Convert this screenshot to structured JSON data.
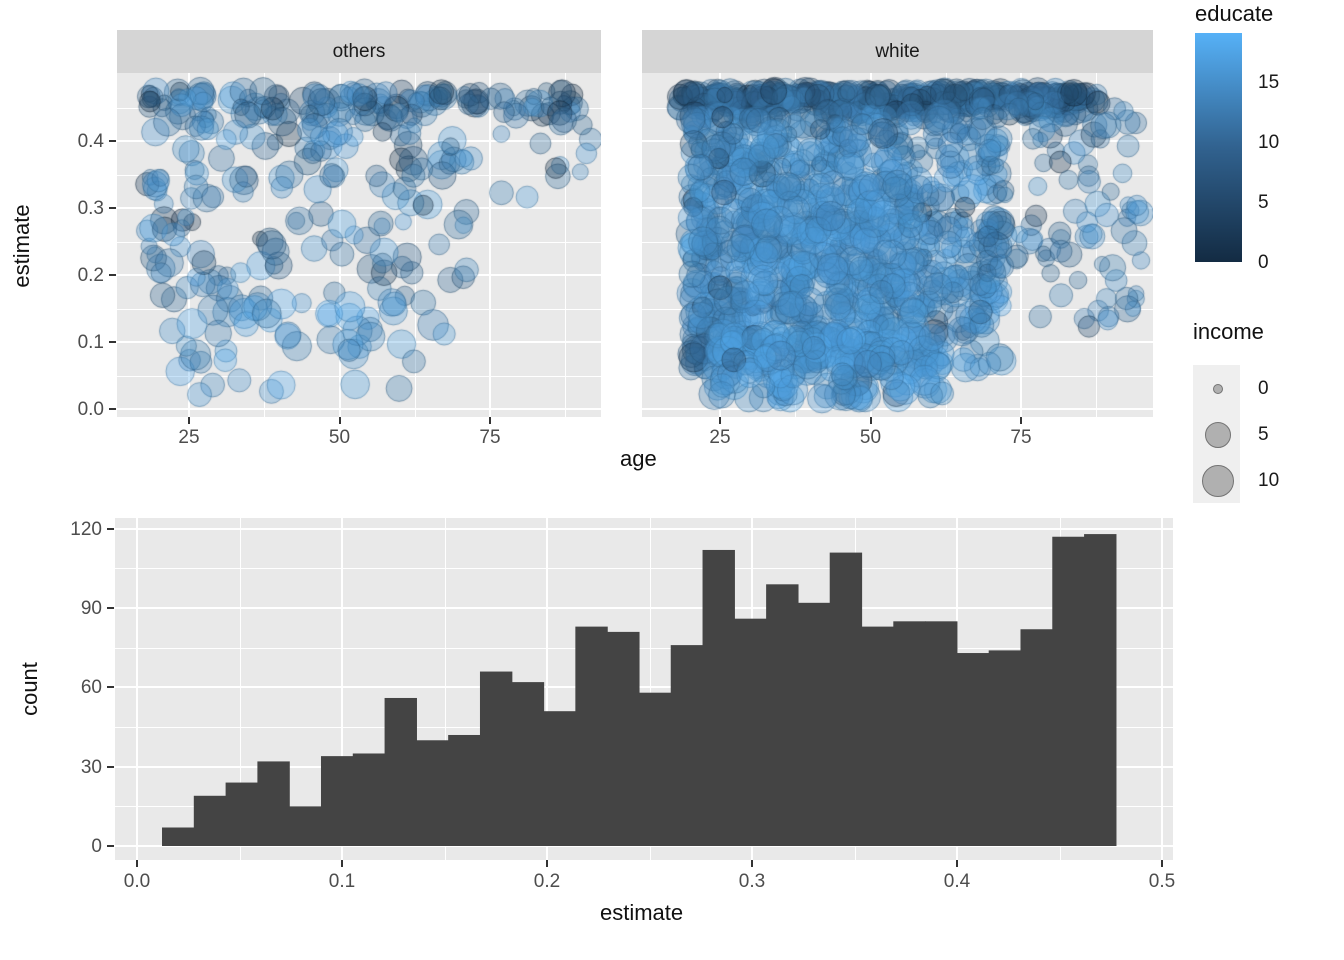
{
  "colors": {
    "panel_bg": "#e9e9e9",
    "strip_bg": "#d5d5d5",
    "grid": "#ffffff",
    "bar_fill": "#444444",
    "tick_text": "#4d4d4d",
    "title_text": "#111111",
    "educate_low": "#132b43",
    "educate_high": "#56b1f7"
  },
  "scatter": {
    "x_title": "age",
    "y_title": "estimate",
    "facets": [
      {
        "label": "others"
      },
      {
        "label": "white"
      }
    ],
    "x_tick_labels": [
      "25",
      "50",
      "75"
    ],
    "x_tick_values": [
      25,
      50,
      75
    ],
    "x_minor_values": [
      37.5,
      62.5,
      87.5
    ],
    "y_tick_labels": [
      "0.0",
      "0.1",
      "0.2",
      "0.3",
      "0.4"
    ],
    "y_tick_values": [
      0.0,
      0.1,
      0.2,
      0.3,
      0.4
    ],
    "y_minor_values": [
      0.05,
      0.15,
      0.25,
      0.35,
      0.45
    ]
  },
  "legend_educate": {
    "title": "educate",
    "max_value": 19.1,
    "low": "#132b43",
    "high": "#56b1f7",
    "ticks": [
      {
        "value": 15,
        "label": "15"
      },
      {
        "value": 10,
        "label": "10"
      },
      {
        "value": 5,
        "label": "5"
      },
      {
        "value": 0,
        "label": "0"
      }
    ]
  },
  "legend_income": {
    "title": "income",
    "keys": [
      {
        "label": "0",
        "radius": 4
      },
      {
        "label": "5",
        "radius": 12
      },
      {
        "label": "10",
        "radius": 15
      }
    ]
  },
  "histogram": {
    "x_title": "estimate",
    "y_title": "count",
    "x_tick_labels": [
      "0.0",
      "0.1",
      "0.2",
      "0.3",
      "0.4",
      "0.5"
    ],
    "x_tick_values": [
      0.0,
      0.1,
      0.2,
      0.3,
      0.4,
      0.5
    ],
    "x_minor_values": [
      0.05,
      0.15,
      0.25,
      0.35,
      0.45
    ],
    "y_tick_labels": [
      "0",
      "30",
      "60",
      "90",
      "120"
    ],
    "y_tick_values": [
      0,
      30,
      60,
      90,
      120
    ],
    "y_minor_values": [
      15,
      45,
      75,
      105
    ]
  },
  "chart_data": [
    {
      "type": "scatter",
      "title": "",
      "x": "age",
      "y": "estimate",
      "color": "educate",
      "size": "income",
      "facet_variable_values": [
        "others",
        "white"
      ],
      "xlim": [
        13,
        96
      ],
      "ylim": [
        -0.012,
        0.5
      ],
      "x_ticks": [
        25,
        50,
        75
      ],
      "y_ticks": [
        0.0,
        0.1,
        0.2,
        0.3,
        0.4
      ],
      "grid": true,
      "color_scale": {
        "low": "#132b43",
        "high": "#56b1f7",
        "ticks": [
          0,
          5,
          10,
          15
        ],
        "max": 19.1
      },
      "size_scale": {
        "ticks": [
          0,
          5,
          10
        ],
        "radius_px": [
          4,
          12,
          15
        ]
      },
      "point_alpha": 0.32,
      "point_clusters": {
        "others": [
          {
            "n": 140,
            "age": [
              18,
              90
            ],
            "age_bias": 1.0,
            "est": [
              0.425,
              0.475
            ],
            "est_bias": 0.55,
            "educate": [
              6,
              17
            ],
            "dark_frac": 0.18,
            "income": [
              1,
              8
            ]
          },
          {
            "n": 150,
            "age": [
              18,
              72
            ],
            "age_bias": 1.2,
            "est": [
              0.155,
              0.43
            ],
            "est_bias": 0.9,
            "educate": [
              7,
              17
            ],
            "dark_frac": 0.08,
            "income": [
              1,
              9
            ]
          },
          {
            "n": 50,
            "age": [
              22,
              68
            ],
            "age_bias": 1.1,
            "est": [
              0.02,
              0.16
            ],
            "est_bias": 1.0,
            "educate": [
              11,
              19
            ],
            "dark_frac": 0.03,
            "income": [
              3,
              11
            ]
          },
          {
            "n": 15,
            "age": [
              70,
              92
            ],
            "age_bias": 1.0,
            "est": [
              0.3,
              0.46
            ],
            "est_bias": 0.8,
            "educate": [
              8,
              16
            ],
            "dark_frac": 0.05,
            "income": [
              1,
              6
            ]
          }
        ],
        "white": [
          {
            "n": 430,
            "age": [
              18,
              88
            ],
            "age_bias": 0.95,
            "est": [
              0.432,
              0.475
            ],
            "est_bias": 0.5,
            "educate": [
              4,
              15
            ],
            "dark_frac": 0.25,
            "income": [
              1,
              8
            ]
          },
          {
            "n": 820,
            "age": [
              20,
              72
            ],
            "age_bias": 1.25,
            "est": [
              0.06,
              0.44
            ],
            "est_bias": 1.0,
            "educate": [
              9,
              18
            ],
            "dark_frac": 0.06,
            "income": [
              1,
              10
            ]
          },
          {
            "n": 150,
            "age": [
              28,
              58
            ],
            "age_bias": 1.0,
            "est": [
              0.1,
              0.34
            ],
            "est_bias": 1.0,
            "educate": [
              12,
              18
            ],
            "dark_frac": 0.0,
            "income": [
              5,
              11
            ]
          },
          {
            "n": 170,
            "age": [
              24,
              62
            ],
            "age_bias": 1.1,
            "est": [
              0.015,
              0.115
            ],
            "est_bias": 1.0,
            "educate": [
              12,
              19
            ],
            "dark_frac": 0.02,
            "income": [
              4,
              11
            ]
          },
          {
            "n": 110,
            "age": [
              68,
              95
            ],
            "age_bias": 1.0,
            "est": [
              0.08,
              0.46
            ],
            "est_bias": 0.7,
            "educate": [
              8,
              16
            ],
            "dark_frac": 0.06,
            "income": [
              1,
              7
            ]
          }
        ]
      }
    },
    {
      "type": "histogram",
      "title": "",
      "xlabel": "estimate",
      "ylabel": "count",
      "xlim": [
        0.0,
        0.5
      ],
      "ylim": [
        0,
        120
      ],
      "grid": true,
      "bar_color": "#444444",
      "bin_start": 0.0122,
      "bin_width": 0.01551,
      "counts": [
        7,
        19,
        24,
        32,
        15,
        34,
        35,
        56,
        40,
        42,
        66,
        62,
        51,
        83,
        81,
        58,
        76,
        112,
        86,
        99,
        92,
        111,
        83,
        85,
        85,
        73,
        74,
        82,
        117,
        118
      ]
    }
  ]
}
